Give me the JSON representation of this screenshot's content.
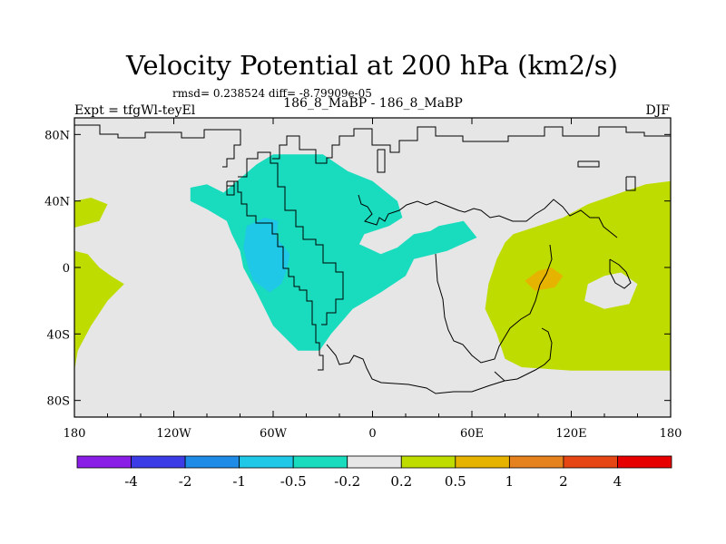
{
  "chart_data": {
    "type": "heatmap",
    "title": "Velocity Potential at 200 hPa (km2/s)",
    "stats": "rmsd= 0.238524 diff= -8.79909e-05",
    "left_label": "Expt = tfgWl-teyEl",
    "center_label": "186_8_MaBP - 186_8_MaBP",
    "right_label": "DJF",
    "x_ticks": [
      "180",
      "120W",
      "60W",
      "0",
      "60E",
      "120E",
      "180"
    ],
    "x_values": [
      -180,
      -120,
      -60,
      0,
      60,
      120,
      180
    ],
    "y_ticks": [
      "80N",
      "40N",
      "0",
      "40S",
      "80S"
    ],
    "y_values": [
      80,
      40,
      0,
      -40,
      -80
    ],
    "xlim": [
      -180,
      180
    ],
    "ylim": [
      -90,
      90
    ],
    "colorbar": {
      "colors": [
        "#8a1ee6",
        "#3c3ce6",
        "#1e8ce6",
        "#1ec8e6",
        "#19dcbe",
        "#e6e6e6",
        "#bedc00",
        "#e6b400",
        "#e6821e",
        "#e64614",
        "#e60000"
      ],
      "labels": [
        "-4",
        "-2",
        "-1",
        "-0.5",
        "-0.2",
        "0.2",
        "0.5",
        "1",
        "2",
        "4"
      ]
    },
    "regions": [
      {
        "name": "teal-negative-americas",
        "level_index": 4,
        "points": [
          [
            -90,
            45
          ],
          [
            -70,
            62
          ],
          [
            -60,
            68
          ],
          [
            -30,
            68
          ],
          [
            -15,
            58
          ],
          [
            0,
            52
          ],
          [
            15,
            40
          ],
          [
            18,
            30
          ],
          [
            10,
            25
          ],
          [
            -5,
            20
          ],
          [
            -8,
            14
          ],
          [
            5,
            8
          ],
          [
            15,
            12
          ],
          [
            25,
            20
          ],
          [
            35,
            22
          ],
          [
            40,
            25
          ],
          [
            55,
            28
          ],
          [
            63,
            18
          ],
          [
            45,
            10
          ],
          [
            25,
            5
          ],
          [
            20,
            -5
          ],
          [
            5,
            -15
          ],
          [
            -12,
            -25
          ],
          [
            -25,
            -40
          ],
          [
            -32,
            -50
          ],
          [
            -45,
            -50
          ],
          [
            -60,
            -35
          ],
          [
            -70,
            -15
          ],
          [
            -78,
            0
          ],
          [
            -80,
            10
          ],
          [
            -85,
            20
          ],
          [
            -88,
            28
          ],
          [
            -100,
            35
          ],
          [
            -110,
            40
          ],
          [
            -110,
            48
          ],
          [
            -100,
            50
          ]
        ]
      },
      {
        "name": "blue-negative-core",
        "level_index": 3,
        "points": [
          [
            -76,
            25
          ],
          [
            -65,
            30
          ],
          [
            -57,
            28
          ],
          [
            -58,
            18
          ],
          [
            -50,
            8
          ],
          [
            -52,
            -2
          ],
          [
            -55,
            -10
          ],
          [
            -62,
            -15
          ],
          [
            -72,
            -8
          ],
          [
            -75,
            0
          ],
          [
            -78,
            12
          ]
        ]
      },
      {
        "name": "green-positive-east",
        "level_index": 6,
        "points": [
          [
            85,
            20
          ],
          [
            100,
            25
          ],
          [
            115,
            30
          ],
          [
            130,
            38
          ],
          [
            150,
            45
          ],
          [
            165,
            50
          ],
          [
            180,
            52
          ],
          [
            180,
            -62
          ],
          [
            160,
            -62
          ],
          [
            120,
            -62
          ],
          [
            90,
            -60
          ],
          [
            80,
            -55
          ],
          [
            75,
            -40
          ],
          [
            68,
            -25
          ],
          [
            70,
            -10
          ],
          [
            75,
            5
          ],
          [
            80,
            15
          ]
        ]
      },
      {
        "name": "grey-hole-east",
        "level_index": 5,
        "points": [
          [
            130,
            -10
          ],
          [
            140,
            -5
          ],
          [
            150,
            -3
          ],
          [
            160,
            -10
          ],
          [
            155,
            -22
          ],
          [
            140,
            -25
          ],
          [
            128,
            -20
          ]
        ]
      },
      {
        "name": "orange-positive-core",
        "level_index": 7,
        "points": [
          [
            92,
            -8
          ],
          [
            100,
            -2
          ],
          [
            108,
            0
          ],
          [
            115,
            -5
          ],
          [
            110,
            -12
          ],
          [
            98,
            -14
          ]
        ]
      },
      {
        "name": "green-positive-west-south",
        "level_index": 6,
        "points": [
          [
            -180,
            10
          ],
          [
            -172,
            8
          ],
          [
            -165,
            0
          ],
          [
            -158,
            -5
          ],
          [
            -150,
            -10
          ],
          [
            -160,
            -20
          ],
          [
            -170,
            -35
          ],
          [
            -178,
            -50
          ],
          [
            -180,
            -62
          ]
        ]
      },
      {
        "name": "green-positive-west-north",
        "level_index": 6,
        "points": [
          [
            -180,
            40
          ],
          [
            -170,
            42
          ],
          [
            -160,
            38
          ],
          [
            -165,
            28
          ],
          [
            -180,
            24
          ]
        ]
      }
    ]
  }
}
